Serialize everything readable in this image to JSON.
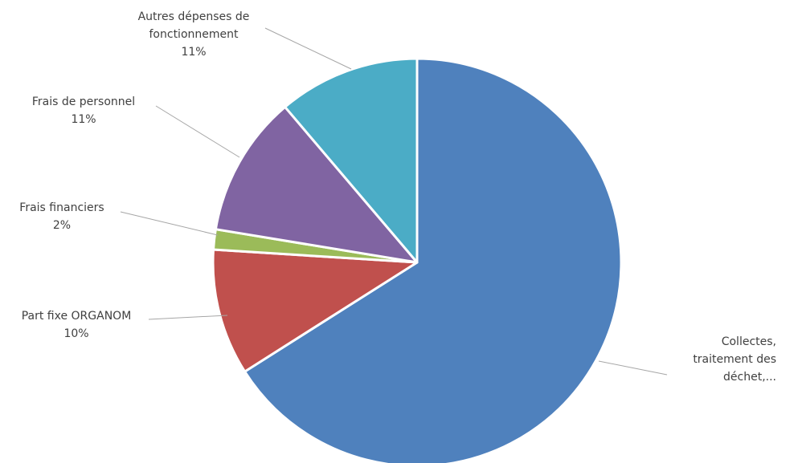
{
  "chart_data": {
    "type": "pie",
    "title": "",
    "slices": [
      {
        "label_lines": [
          "Collectes,",
          "traitement des",
          "déchet,..."
        ],
        "pct_label": "",
        "value": 66,
        "color": "#4f81bd"
      },
      {
        "label_lines": [
          "Part fixe ORGANOM"
        ],
        "pct_label": "10%",
        "value": 10,
        "color": "#c0504d"
      },
      {
        "label_lines": [
          "Frais financiers"
        ],
        "pct_label": "2%",
        "value": 1.6,
        "color": "#9bbb59"
      },
      {
        "label_lines": [
          "Frais de personnel"
        ],
        "pct_label": "11%",
        "value": 11.2,
        "color": "#8064a2"
      },
      {
        "label_lines": [
          "Autres dépenses de",
          "fonctionnement"
        ],
        "pct_label": "11%",
        "value": 11.2,
        "color": "#4bacc6"
      }
    ],
    "start_angle_deg": 0,
    "direction": "clockwise",
    "legend": "none",
    "data_labels": "outside-with-leader-lines"
  }
}
